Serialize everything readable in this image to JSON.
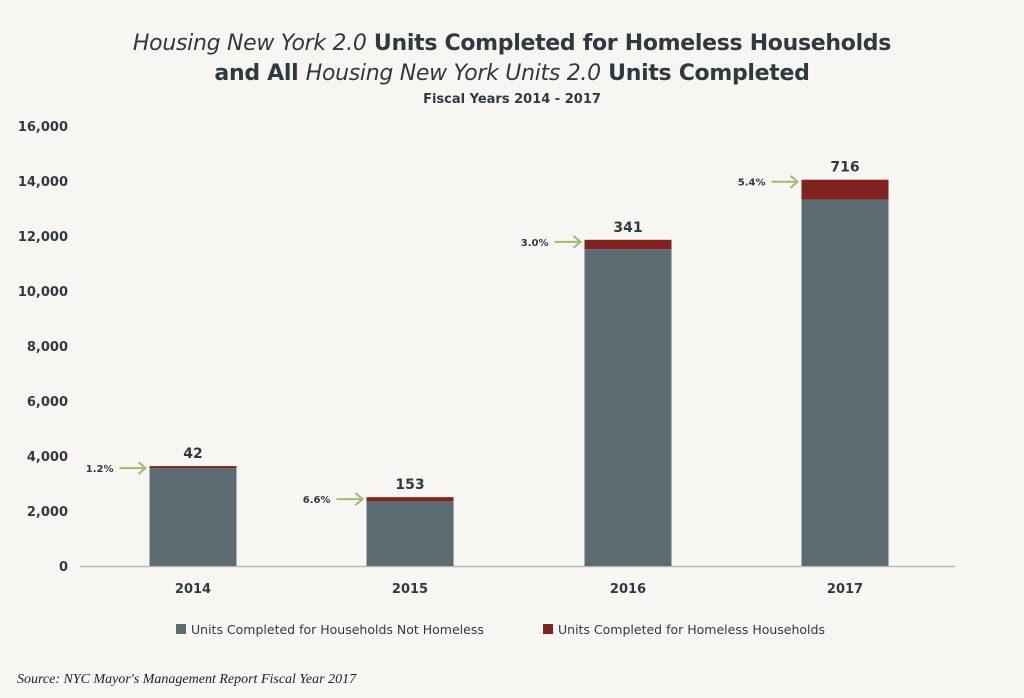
{
  "title_line1": {
    "italic_a": "Housing New York 2.0",
    "rest_a": " Units Completed for Homeless Households"
  },
  "title_line2": {
    "pre": "and All ",
    "italic_b": "Housing New York Units 2.0",
    "rest_b": " Units Completed"
  },
  "subtitle": "Fiscal Years 2014 - 2017",
  "source": "Source:  NYC Mayor's Management Report Fiscal Year 2017",
  "chart_data": {
    "type": "bar",
    "stacked": true,
    "categories": [
      "2014",
      "2015",
      "2016",
      "2017"
    ],
    "series": [
      {
        "name": "Units Completed for Households Not Homeless",
        "color": "#5d6b73",
        "values": [
          3560,
          2350,
          11520,
          13330
        ]
      },
      {
        "name": "Units Completed for Homeless Households",
        "color": "#7f2220",
        "values": [
          42,
          153,
          341,
          716
        ]
      }
    ],
    "data_labels": [
      "42",
      "153",
      "341",
      "716"
    ],
    "percent_annotations": [
      "1.2%",
      "6.6%",
      "3.0%",
      "5.4%"
    ],
    "arrow_color": "#a3b86c",
    "ylim": [
      0,
      16000
    ],
    "yticks": [
      0,
      2000,
      4000,
      6000,
      8000,
      10000,
      12000,
      14000,
      16000
    ],
    "ytick_labels": [
      "0",
      "2,000",
      "4,000",
      "6,000",
      "8,000",
      "10,000",
      "12,000",
      "14,000",
      "16,000"
    ],
    "grid": false,
    "legend": "bottom"
  }
}
